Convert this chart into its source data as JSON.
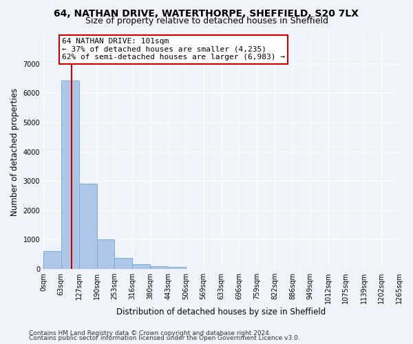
{
  "title_line1": "64, NATHAN DRIVE, WATERTHORPE, SHEFFIELD, S20 7LX",
  "title_line2": "Size of property relative to detached houses in Sheffield",
  "xlabel": "Distribution of detached houses by size in Sheffield",
  "ylabel": "Number of detached properties",
  "bin_edges": [
    0,
    63,
    127,
    190,
    253,
    316,
    380,
    443,
    506,
    569,
    633,
    696,
    759,
    822,
    886,
    949,
    1012,
    1075,
    1139,
    1202,
    1265
  ],
  "bin_labels": [
    "0sqm",
    "63sqm",
    "127sqm",
    "190sqm",
    "253sqm",
    "316sqm",
    "380sqm",
    "443sqm",
    "506sqm",
    "569sqm",
    "633sqm",
    "696sqm",
    "759sqm",
    "822sqm",
    "886sqm",
    "949sqm",
    "1012sqm",
    "1075sqm",
    "1139sqm",
    "1202sqm",
    "1265sqm"
  ],
  "bar_heights": [
    620,
    6420,
    2920,
    1010,
    380,
    160,
    100,
    75,
    0,
    0,
    0,
    0,
    0,
    0,
    0,
    0,
    0,
    0,
    0,
    0
  ],
  "bar_color": "#aec6e8",
  "bar_edge_color": "#7aadd4",
  "property_size": 101,
  "vline_color": "#cc0000",
  "annotation_text": "64 NATHAN DRIVE: 101sqm\n← 37% of detached houses are smaller (4,235)\n62% of semi-detached houses are larger (6,983) →",
  "annotation_box_edge_color": "#cc0000",
  "annotation_box_face_color": "#ffffff",
  "ylim": [
    0,
    8000
  ],
  "yticks": [
    0,
    1000,
    2000,
    3000,
    4000,
    5000,
    6000,
    7000
  ],
  "background_color": "#f0f4fa",
  "grid_color": "#d8e0ed",
  "footer_line1": "Contains HM Land Registry data © Crown copyright and database right 2024.",
  "footer_line2": "Contains public sector information licensed under the Open Government Licence v3.0.",
  "title_fontsize": 10,
  "subtitle_fontsize": 9,
  "axis_label_fontsize": 8.5,
  "tick_fontsize": 7,
  "annotation_fontsize": 8,
  "footer_fontsize": 6.5
}
